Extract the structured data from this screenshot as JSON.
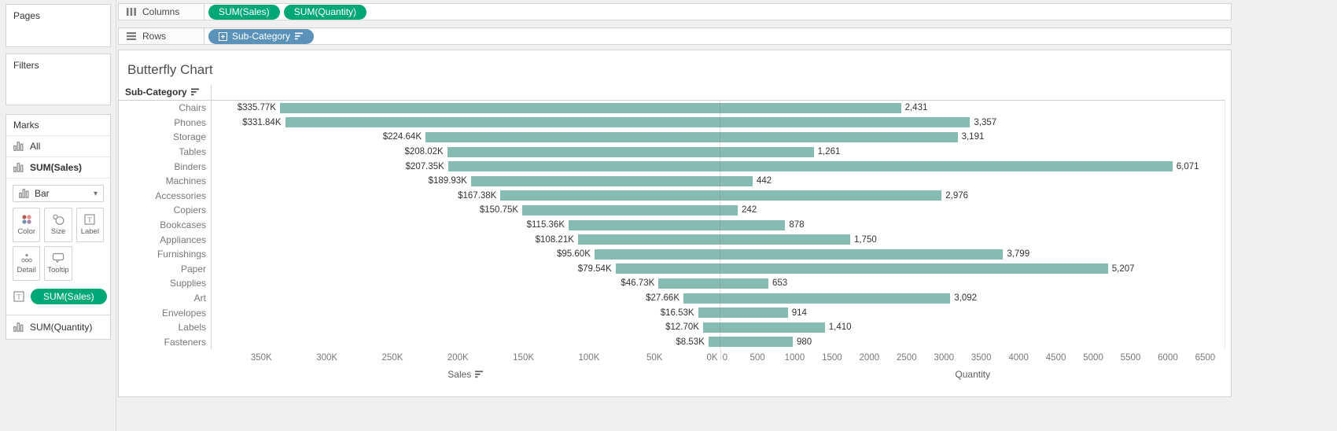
{
  "colors": {
    "bar": "#86bbb4",
    "measure_pill": "#00a878",
    "dimension_pill": "#5a92ba"
  },
  "sidebar": {
    "pages_label": "Pages",
    "filters_label": "Filters",
    "marks_label": "Marks",
    "marks_cards": {
      "all": "All",
      "sales": "SUM(Sales)",
      "quantity": "SUM(Quantity)"
    },
    "mark_type": "Bar",
    "buttons": [
      "Color",
      "Size",
      "Label",
      "Detail",
      "Tooltip"
    ],
    "label_pill": "SUM(Sales)"
  },
  "shelves": {
    "columns_label": "Columns",
    "rows_label": "Rows",
    "columns_pills": [
      "SUM(Sales)",
      "SUM(Quantity)"
    ],
    "rows_pill": "Sub-Category"
  },
  "chart_data": {
    "type": "bar",
    "variant": "butterfly (diverging horizontal bars, shared category axis)",
    "title": "Butterfly Chart",
    "row_header": "Sub-Category",
    "row_header_sorted": true,
    "categories": [
      "Chairs",
      "Phones",
      "Storage",
      "Tables",
      "Binders",
      "Machines",
      "Accessories",
      "Copiers",
      "Bookcases",
      "Appliances",
      "Furnishings",
      "Paper",
      "Supplies",
      "Art",
      "Envelopes",
      "Labels",
      "Fasteners"
    ],
    "series": [
      {
        "name": "SUM(Sales)",
        "side": "left",
        "labels": [
          "$335.77K",
          "$331.84K",
          "$224.64K",
          "$208.02K",
          "$207.35K",
          "$189.93K",
          "$167.38K",
          "$150.75K",
          "$115.36K",
          "$108.21K",
          "$95.60K",
          "$79.54K",
          "$46.73K",
          "$27.66K",
          "$16.53K",
          "$12.70K",
          "$8.53K"
        ],
        "values_k": [
          335.77,
          331.84,
          224.64,
          208.02,
          207.35,
          189.93,
          167.38,
          150.75,
          115.36,
          108.21,
          95.6,
          79.54,
          46.73,
          27.66,
          16.53,
          12.7,
          8.53
        ]
      },
      {
        "name": "SUM(Quantity)",
        "side": "right",
        "labels": [
          "2,431",
          "3,357",
          "3,191",
          "1,261",
          "6,071",
          "442",
          "2,976",
          "242",
          "878",
          "1,750",
          "3,799",
          "5,207",
          "653",
          "3,092",
          "914",
          "1,410",
          "980"
        ],
        "values": [
          2431,
          3357,
          3191,
          1261,
          6071,
          442,
          2976,
          242,
          878,
          1750,
          3799,
          5207,
          653,
          3092,
          914,
          1410,
          980
        ]
      }
    ],
    "axes": {
      "sales": {
        "title": "Sales",
        "sorted": true,
        "reversed": true,
        "tick_labels": [
          "350K",
          "300K",
          "250K",
          "200K",
          "150K",
          "100K",
          "50K",
          "0K"
        ],
        "ticks_k": [
          350,
          300,
          250,
          200,
          150,
          100,
          50,
          0
        ],
        "range_k": [
          0,
          388
        ]
      },
      "quantity": {
        "title": "Quantity",
        "tick_labels": [
          "0",
          "500",
          "1000",
          "1500",
          "2000",
          "2500",
          "3000",
          "3500",
          "4000",
          "4500",
          "5000",
          "5500",
          "6000",
          "6500"
        ],
        "ticks": [
          0,
          500,
          1000,
          1500,
          2000,
          2500,
          3000,
          3500,
          4000,
          4500,
          5000,
          5500,
          6000,
          6500
        ],
        "range": [
          0,
          6770
        ]
      }
    },
    "legend": "none",
    "gridlines": "zero divider line only"
  }
}
